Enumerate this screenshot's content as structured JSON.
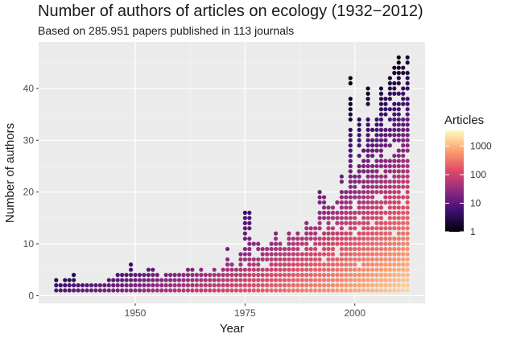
{
  "chart_data": {
    "type": "scatter",
    "title": "Number of authors of articles on ecology (1932−2012)",
    "subtitle": "Based on 285.951 papers published in 113 journals",
    "xlabel": "Year",
    "ylabel": "Number of authors",
    "xlim": [
      1928,
      2016
    ],
    "ylim": [
      -1.5,
      49
    ],
    "xticks": [
      1950,
      1975,
      2000
    ],
    "yticks": [
      0,
      10,
      20,
      30,
      40
    ],
    "grid": true,
    "legend": {
      "title": "Articles",
      "position": "right",
      "scale": "log10",
      "ticks": [
        1,
        10,
        100,
        1000
      ],
      "colors": [
        "#000004",
        "#3b0f70",
        "#8c2981",
        "#de4968",
        "#fe9f6d",
        "#fcfdbf"
      ]
    },
    "series_description": "each dot = (year, number of authors) colored by article count on log scale",
    "year_range": [
      1932,
      2012
    ],
    "max_authors_by_year": [
      [
        1932,
        3
      ],
      [
        1933,
        2
      ],
      [
        1934,
        3
      ],
      [
        1935,
        3
      ],
      [
        1936,
        4
      ],
      [
        1937,
        2
      ],
      [
        1938,
        2
      ],
      [
        1939,
        2
      ],
      [
        1940,
        2
      ],
      [
        1941,
        2
      ],
      [
        1942,
        2
      ],
      [
        1943,
        2
      ],
      [
        1944,
        3
      ],
      [
        1945,
        3
      ],
      [
        1946,
        4
      ],
      [
        1947,
        4
      ],
      [
        1948,
        4
      ],
      [
        1949,
        6
      ],
      [
        1950,
        4
      ],
      [
        1951,
        4
      ],
      [
        1952,
        4
      ],
      [
        1953,
        5
      ],
      [
        1954,
        5
      ],
      [
        1955,
        4
      ],
      [
        1956,
        3
      ],
      [
        1957,
        4
      ],
      [
        1958,
        4
      ],
      [
        1959,
        4
      ],
      [
        1960,
        4
      ],
      [
        1961,
        4
      ],
      [
        1962,
        5
      ],
      [
        1963,
        5
      ],
      [
        1964,
        4
      ],
      [
        1965,
        5
      ],
      [
        1966,
        4
      ],
      [
        1967,
        4
      ],
      [
        1968,
        5
      ],
      [
        1969,
        4
      ],
      [
        1970,
        5
      ],
      [
        1971,
        9
      ],
      [
        1972,
        6
      ],
      [
        1973,
        6
      ],
      [
        1974,
        8
      ],
      [
        1975,
        16
      ],
      [
        1976,
        16
      ],
      [
        1977,
        10
      ],
      [
        1978,
        10
      ],
      [
        1979,
        9
      ],
      [
        1980,
        10
      ],
      [
        1981,
        10
      ],
      [
        1982,
        12
      ],
      [
        1983,
        11
      ],
      [
        1984,
        10
      ],
      [
        1985,
        13
      ],
      [
        1986,
        11
      ],
      [
        1987,
        12
      ],
      [
        1988,
        11
      ],
      [
        1989,
        14
      ],
      [
        1990,
        13
      ],
      [
        1991,
        13
      ],
      [
        1992,
        20
      ],
      [
        1993,
        19
      ],
      [
        1994,
        18
      ],
      [
        1995,
        17
      ],
      [
        1996,
        18
      ],
      [
        1997,
        23
      ],
      [
        1998,
        21
      ],
      [
        1999,
        42
      ],
      [
        2000,
        24
      ],
      [
        2001,
        34
      ],
      [
        2002,
        28
      ],
      [
        2003,
        42
      ],
      [
        2004,
        33
      ],
      [
        2005,
        35
      ],
      [
        2006,
        40
      ],
      [
        2007,
        38
      ],
      [
        2008,
        42
      ],
      [
        2009,
        45
      ],
      [
        2010,
        46
      ],
      [
        2011,
        44
      ],
      [
        2012,
        47
      ]
    ]
  }
}
